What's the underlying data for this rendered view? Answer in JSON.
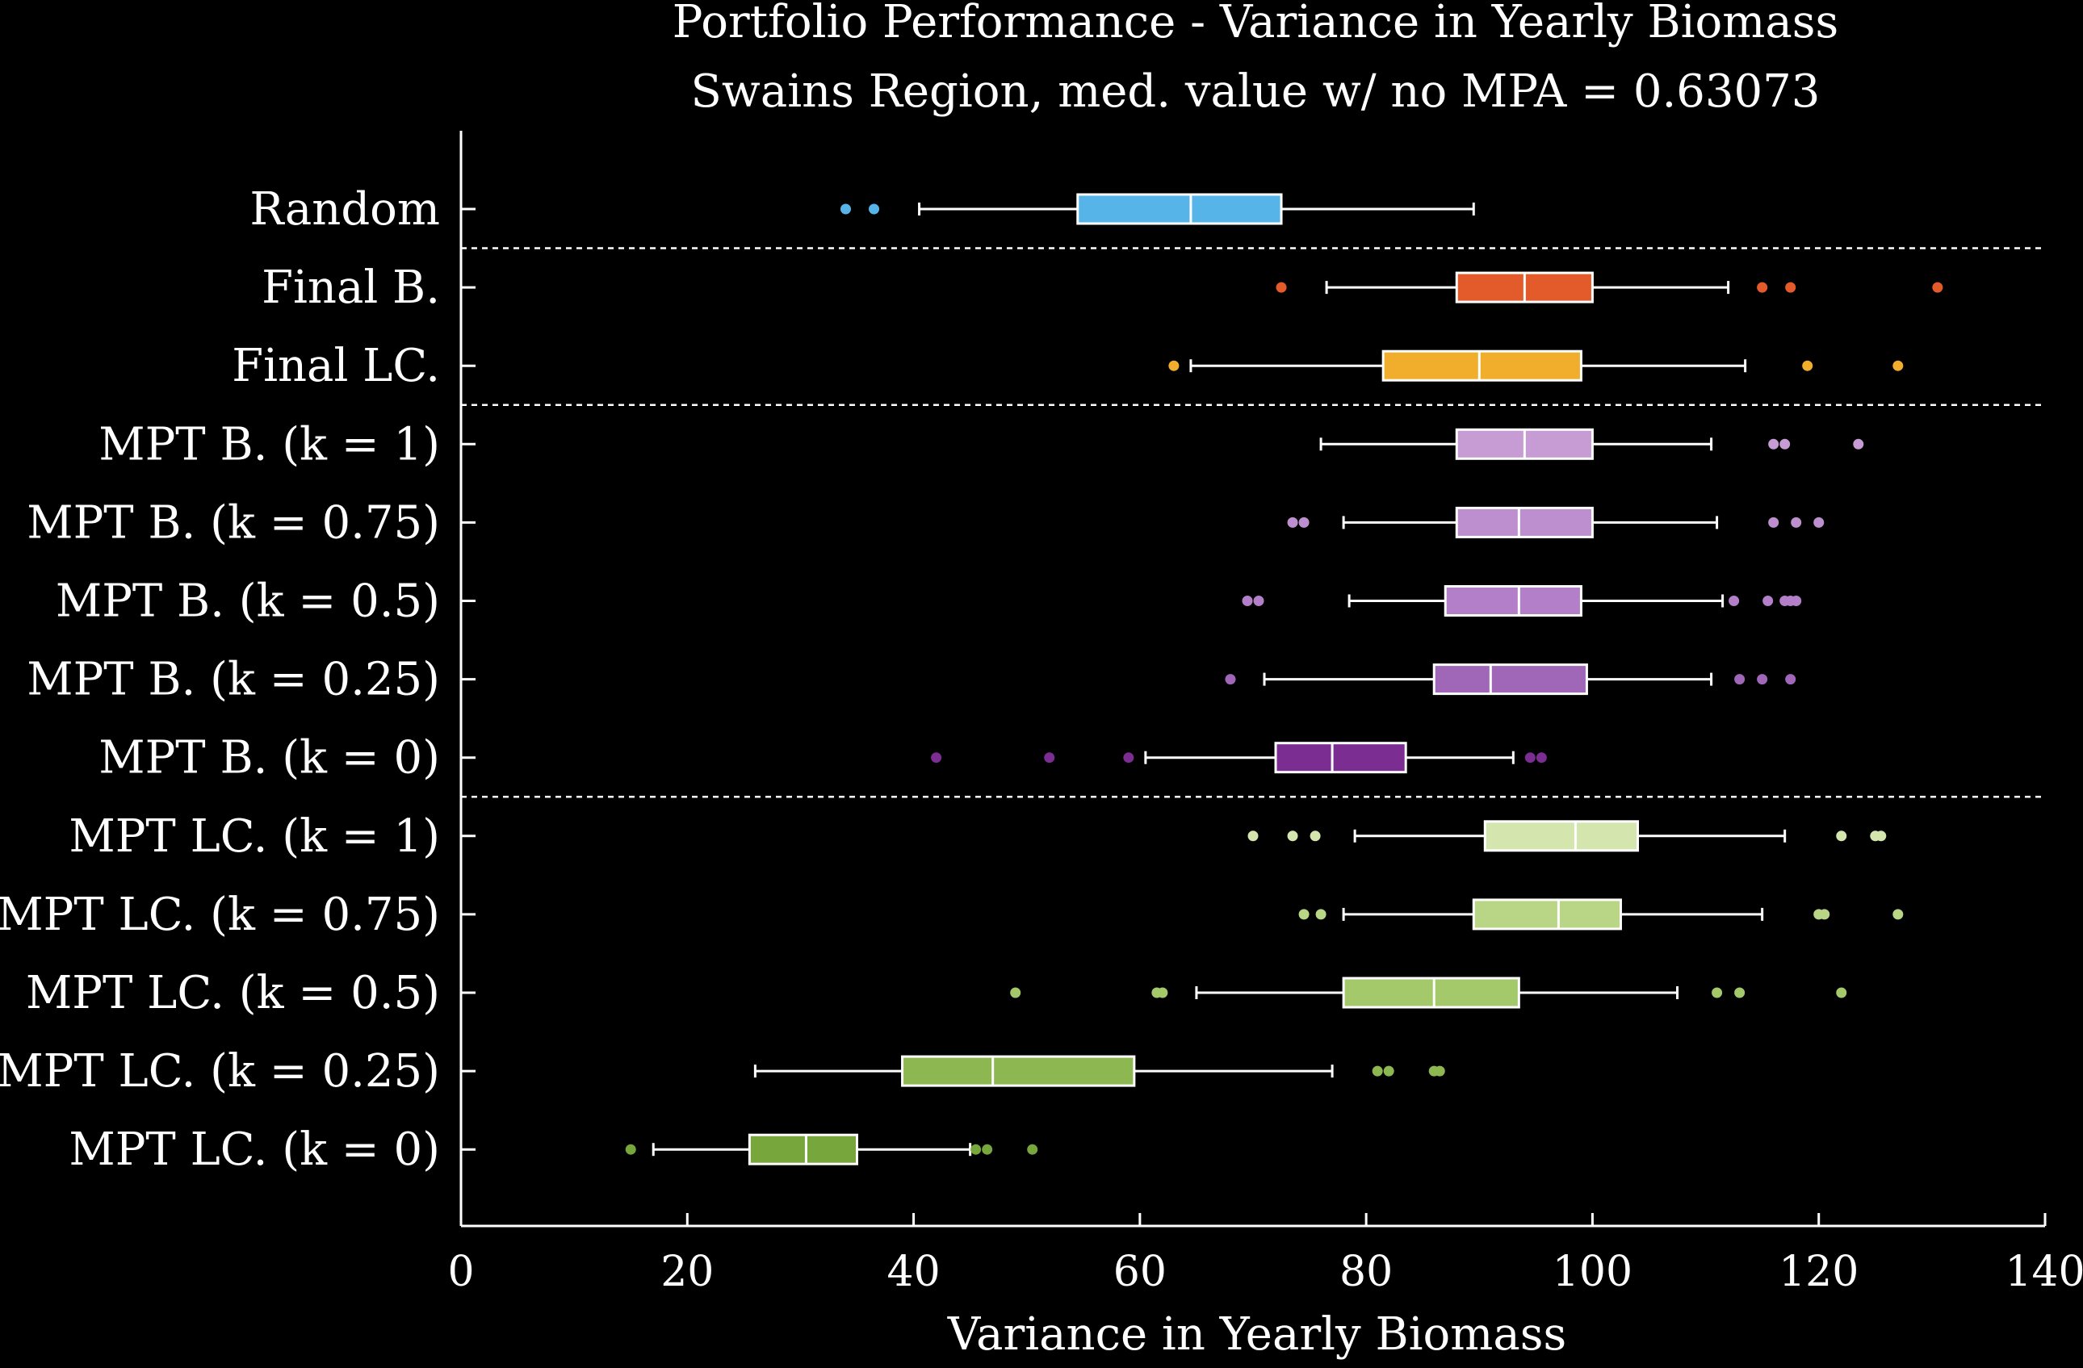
{
  "chart_data": {
    "type": "boxplot",
    "orientation": "horizontal",
    "title": "Portfolio Performance - Variance in Yearly Biomass",
    "subtitle": "Swains Region, med. value w/ no MPA = 0.63073",
    "xlabel": "Variance in Yearly Biomass",
    "xlim": [
      0,
      140
    ],
    "xticks": [
      0,
      20,
      40,
      60,
      80,
      100,
      120,
      140
    ],
    "separators_after": [
      "Random",
      "Final LC.",
      "MPT B. (k = 0)"
    ],
    "series": [
      {
        "name": "Random",
        "color": "#56b4e9",
        "whisker_low": 40.5,
        "q1": 54.5,
        "median": 64.5,
        "q3": 72.5,
        "whisker_high": 89.5,
        "outliers": [
          34,
          36.5
        ]
      },
      {
        "name": "Final B.",
        "color": "#e35b2b",
        "whisker_low": 76.5,
        "q1": 88,
        "median": 94,
        "q3": 100,
        "whisker_high": 112,
        "outliers": [
          72.5,
          115,
          117.5,
          130.5
        ]
      },
      {
        "name": "Final LC.",
        "color": "#f0ae2c",
        "whisker_low": 64.5,
        "q1": 81.5,
        "median": 90,
        "q3": 99,
        "whisker_high": 113.5,
        "outliers": [
          63,
          119,
          127
        ]
      },
      {
        "name": "MPT B. (k = 1)",
        "color": "#c79bd4",
        "whisker_low": 76,
        "q1": 88,
        "median": 94,
        "q3": 100,
        "whisker_high": 110.5,
        "outliers": [
          116,
          117,
          123.5
        ]
      },
      {
        "name": "MPT B. (k = 0.75)",
        "color": "#bd8fcf",
        "whisker_low": 78,
        "q1": 88,
        "median": 93.5,
        "q3": 100,
        "whisker_high": 111,
        "outliers": [
          73.5,
          74.5,
          116,
          118,
          120
        ]
      },
      {
        "name": "MPT B. (k = 0.5)",
        "color": "#b37fc8",
        "whisker_low": 78.5,
        "q1": 87,
        "median": 93.5,
        "q3": 99,
        "whisker_high": 111.5,
        "outliers": [
          69.5,
          70.5,
          112.5,
          115.5,
          117,
          117.5,
          118
        ]
      },
      {
        "name": "MPT B. (k = 0.25)",
        "color": "#a066b8",
        "whisker_low": 71,
        "q1": 86,
        "median": 91,
        "q3": 99.5,
        "whisker_high": 110.5,
        "outliers": [
          68,
          113,
          115,
          117.5
        ]
      },
      {
        "name": "MPT B. (k = 0)",
        "color": "#7b2d91",
        "whisker_low": 60.5,
        "q1": 72,
        "median": 77,
        "q3": 83.5,
        "whisker_high": 93,
        "outliers": [
          42,
          52,
          59,
          94.5,
          95.5
        ]
      },
      {
        "name": "MPT LC. (k = 1)",
        "color": "#d4e6ad",
        "whisker_low": 79,
        "q1": 90.5,
        "median": 98.5,
        "q3": 104,
        "whisker_high": 117,
        "outliers": [
          70,
          73.5,
          75.5,
          122,
          125,
          125.5
        ]
      },
      {
        "name": "MPT LC. (k = 0.75)",
        "color": "#b8d686",
        "whisker_low": 78,
        "q1": 89.5,
        "median": 97,
        "q3": 102.5,
        "whisker_high": 115,
        "outliers": [
          74.5,
          76,
          120,
          120.5,
          127
        ]
      },
      {
        "name": "MPT LC. (k = 0.5)",
        "color": "#a3c96b",
        "whisker_low": 65,
        "q1": 78,
        "median": 86,
        "q3": 93.5,
        "whisker_high": 107.5,
        "outliers": [
          49,
          61.5,
          62,
          111,
          113,
          122
        ]
      },
      {
        "name": "MPT LC. (k = 0.25)",
        "color": "#8db851",
        "whisker_low": 26,
        "q1": 39,
        "median": 47,
        "q3": 59.5,
        "whisker_high": 77,
        "outliers": [
          81,
          82,
          86,
          86.5
        ]
      },
      {
        "name": "MPT LC. (k = 0)",
        "color": "#76a63c",
        "whisker_low": 17,
        "q1": 25.5,
        "median": 30.5,
        "q3": 35,
        "whisker_high": 45,
        "outliers": [
          15,
          45.5,
          46.5,
          50.5
        ]
      }
    ]
  }
}
